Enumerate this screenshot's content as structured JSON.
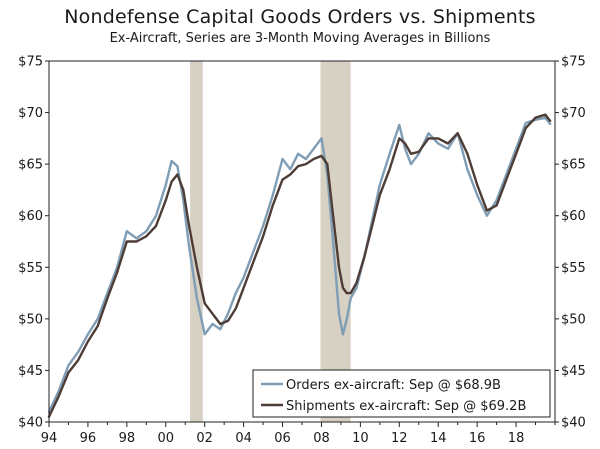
{
  "chart_data": {
    "type": "line",
    "title": "Nondefense Capital Goods Orders vs. Shipments",
    "subtitle": "Ex-Aircraft, Series are 3-Month Moving Averages in Billions",
    "xlabel": "",
    "ylabel": "",
    "xlim": [
      1994.0,
      2020.0
    ],
    "ylim": [
      40,
      75
    ],
    "y_ticks": [
      40,
      45,
      50,
      55,
      60,
      65,
      70,
      75
    ],
    "y_tick_labels": [
      "$40",
      "$45",
      "$50",
      "$55",
      "$60",
      "$65",
      "$70",
      "$75"
    ],
    "x_ticks": [
      1994,
      1996,
      1998,
      2000,
      2002,
      2004,
      2006,
      2008,
      2010,
      2012,
      2014,
      2016,
      2018
    ],
    "x_tick_labels": [
      "94",
      "96",
      "98",
      "00",
      "02",
      "04",
      "06",
      "08",
      "10",
      "12",
      "14",
      "16",
      "18"
    ],
    "recessions": [
      {
        "start": 2001.25,
        "end": 2001.9
      },
      {
        "start": 2007.95,
        "end": 2009.5
      }
    ],
    "legend_position": "bottom-right",
    "series": [
      {
        "name": "Orders ex-aircraft: Sep @ $68.9B",
        "color": "#7f9db4",
        "x": [
          1994.0,
          1994.5,
          1995.0,
          1995.5,
          1996.0,
          1996.5,
          1997.0,
          1997.5,
          1998.0,
          1998.5,
          1999.0,
          1999.5,
          2000.0,
          2000.3,
          2000.6,
          2000.9,
          2001.2,
          2001.6,
          2002.0,
          2002.4,
          2002.8,
          2003.2,
          2003.6,
          2004.0,
          2004.5,
          2005.0,
          2005.5,
          2006.0,
          2006.4,
          2006.8,
          2007.2,
          2007.6,
          2008.0,
          2008.3,
          2008.6,
          2008.9,
          2009.1,
          2009.3,
          2009.5,
          2009.8,
          2010.2,
          2010.6,
          2011.0,
          2011.5,
          2012.0,
          2012.3,
          2012.6,
          2013.0,
          2013.5,
          2014.0,
          2014.5,
          2015.0,
          2015.5,
          2016.0,
          2016.5,
          2017.0,
          2017.5,
          2018.0,
          2018.5,
          2019.0,
          2019.5,
          2019.75
        ],
        "values": [
          41.0,
          43.0,
          45.5,
          46.8,
          48.5,
          50.0,
          52.5,
          55.0,
          58.5,
          57.8,
          58.5,
          60.0,
          63.0,
          65.3,
          64.8,
          61.5,
          57.0,
          52.0,
          48.5,
          49.5,
          49.0,
          50.5,
          52.5,
          54.0,
          56.5,
          59.0,
          62.0,
          65.5,
          64.5,
          66.0,
          65.5,
          66.5,
          67.5,
          64.0,
          57.5,
          50.5,
          48.5,
          50.0,
          52.0,
          53.0,
          56.0,
          59.5,
          63.0,
          66.0,
          68.8,
          66.5,
          65.0,
          66.0,
          68.0,
          67.0,
          66.5,
          68.0,
          64.5,
          62.0,
          60.0,
          61.5,
          64.0,
          66.5,
          69.0,
          69.3,
          69.5,
          68.9
        ]
      },
      {
        "name": "Shipments ex-aircraft: Sep @ $69.2B",
        "color": "#4e3c36",
        "x": [
          1994.0,
          1994.5,
          1995.0,
          1995.5,
          1996.0,
          1996.5,
          1997.0,
          1997.5,
          1998.0,
          1998.5,
          1999.0,
          1999.5,
          2000.0,
          2000.3,
          2000.6,
          2000.9,
          2001.2,
          2001.6,
          2002.0,
          2002.4,
          2002.8,
          2003.2,
          2003.6,
          2004.0,
          2004.5,
          2005.0,
          2005.5,
          2006.0,
          2006.4,
          2006.8,
          2007.2,
          2007.6,
          2008.0,
          2008.3,
          2008.6,
          2008.9,
          2009.1,
          2009.3,
          2009.5,
          2009.8,
          2010.2,
          2010.6,
          2011.0,
          2011.5,
          2012.0,
          2012.3,
          2012.6,
          2013.0,
          2013.5,
          2014.0,
          2014.5,
          2015.0,
          2015.5,
          2016.0,
          2016.5,
          2017.0,
          2017.5,
          2018.0,
          2018.5,
          2019.0,
          2019.5,
          2019.75
        ],
        "values": [
          40.5,
          42.5,
          44.8,
          46.0,
          47.8,
          49.3,
          52.0,
          54.5,
          57.5,
          57.5,
          58.0,
          59.0,
          61.5,
          63.3,
          64.0,
          62.5,
          59.0,
          55.0,
          51.5,
          50.5,
          49.5,
          49.8,
          51.0,
          53.0,
          55.5,
          58.0,
          61.0,
          63.5,
          64.0,
          64.8,
          65.0,
          65.5,
          65.8,
          65.0,
          60.0,
          55.0,
          53.0,
          52.5,
          52.5,
          53.5,
          56.0,
          59.0,
          62.0,
          64.5,
          67.5,
          67.0,
          66.0,
          66.2,
          67.5,
          67.5,
          67.0,
          68.0,
          66.0,
          63.0,
          60.5,
          61.0,
          63.5,
          66.0,
          68.5,
          69.5,
          69.8,
          69.2
        ]
      }
    ]
  }
}
